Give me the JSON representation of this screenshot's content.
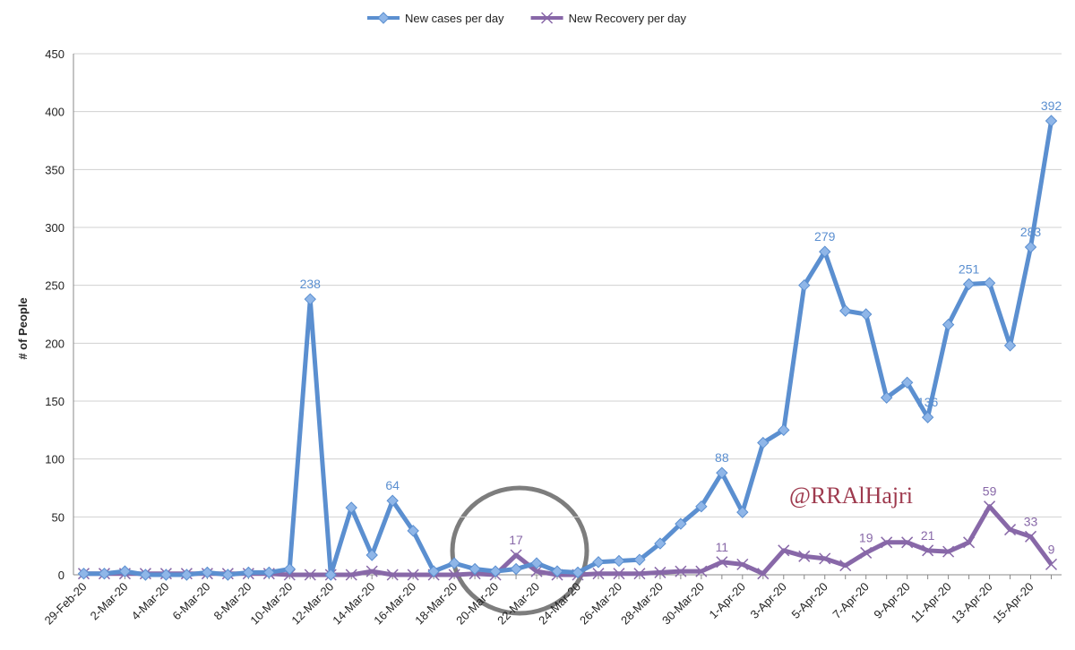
{
  "chart_data": {
    "type": "line",
    "y_label": "# of People",
    "annotation": "@RRAlHajri",
    "categories": [
      "29-Feb-20",
      null,
      "2-Mar-20",
      null,
      "4-Mar-20",
      null,
      "6-Mar-20",
      null,
      "8-Mar-20",
      null,
      "10-Mar-20",
      null,
      "12-Mar-20",
      null,
      "14-Mar-20",
      null,
      "16-Mar-20",
      null,
      "18-Mar-20",
      null,
      "20-Mar-20",
      null,
      "22-Mar-20",
      null,
      "24-Mar-20",
      null,
      "26-Mar-20",
      null,
      "28-Mar-20",
      null,
      "30-Mar-20",
      null,
      "1-Apr-20",
      null,
      "3-Apr-20",
      null,
      "5-Apr-20",
      null,
      "7-Apr-20",
      null,
      "9-Apr-20",
      null,
      "11-Apr-20",
      null,
      "13-Apr-20",
      null,
      "15-Apr-20",
      null
    ],
    "series": [
      {
        "name": "New cases per day",
        "color": "#5b8fd0",
        "marker": "diamond",
        "values": [
          1,
          1,
          3,
          0,
          0,
          0,
          2,
          0,
          2,
          2,
          5,
          238,
          0,
          58,
          17,
          64,
          38,
          3,
          10,
          5,
          3,
          5,
          10,
          3,
          2,
          11,
          12,
          13,
          27,
          44,
          59,
          88,
          54,
          114,
          125,
          250,
          279,
          228,
          225,
          153,
          166,
          136,
          216,
          251,
          252,
          198,
          283,
          392
        ],
        "value_labels": [
          null,
          null,
          null,
          null,
          null,
          null,
          null,
          null,
          null,
          null,
          null,
          "238",
          null,
          null,
          null,
          "64",
          null,
          null,
          null,
          null,
          null,
          null,
          null,
          null,
          null,
          null,
          null,
          null,
          null,
          null,
          null,
          "88",
          null,
          null,
          null,
          null,
          "279",
          null,
          null,
          null,
          null,
          "136",
          null,
          "251",
          null,
          null,
          "283",
          "392"
        ]
      },
      {
        "name": "New Recovery per day",
        "color": "#8868a8",
        "marker": "x",
        "values": [
          1,
          1,
          1,
          1,
          1,
          1,
          1,
          1,
          1,
          1,
          0,
          0,
          0,
          0,
          3,
          0,
          0,
          0,
          0,
          1,
          0,
          17,
          3,
          0,
          0,
          1,
          1,
          1,
          2,
          3,
          3,
          11,
          9,
          1,
          21,
          16,
          14,
          8,
          19,
          28,
          28,
          21,
          20,
          28,
          59,
          39,
          33,
          9
        ],
        "value_labels": [
          null,
          null,
          null,
          null,
          null,
          null,
          null,
          null,
          null,
          null,
          null,
          null,
          null,
          null,
          null,
          null,
          null,
          null,
          null,
          null,
          null,
          "17",
          null,
          null,
          null,
          null,
          null,
          null,
          null,
          null,
          null,
          "11",
          null,
          null,
          null,
          null,
          null,
          null,
          "19",
          null,
          null,
          "21",
          null,
          null,
          "59",
          null,
          "33",
          "9"
        ]
      }
    ],
    "ylim": [
      0,
      450
    ],
    "yticks": [
      0,
      50,
      100,
      150,
      200,
      250,
      300,
      350,
      400,
      450
    ],
    "grid": true,
    "legend": "top"
  }
}
